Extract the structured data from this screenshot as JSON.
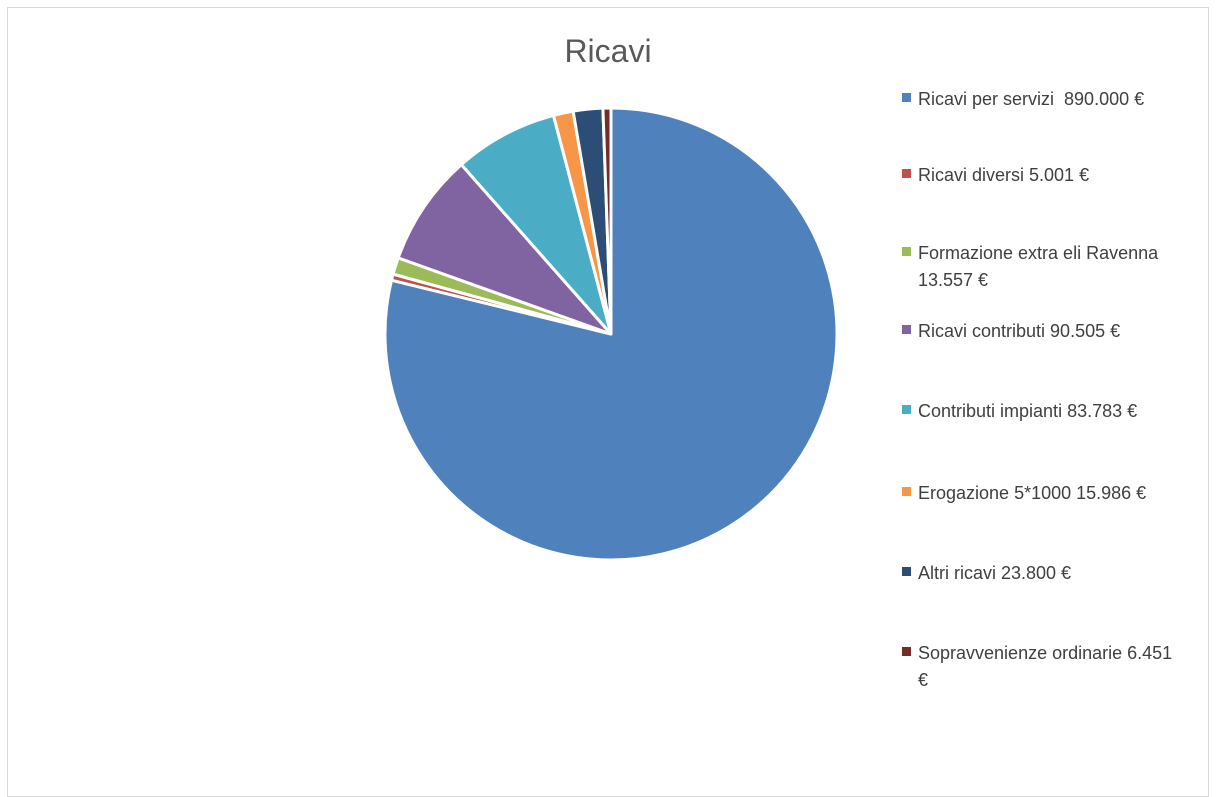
{
  "chart_data": {
    "type": "pie",
    "title": "Ricavi",
    "legend_position": "right",
    "slices": [
      {
        "label": "Ricavi per servizi  890.000 €",
        "value": 890000,
        "color": "#4f81bd"
      },
      {
        "label": "Ricavi diversi 5.001 €",
        "value": 5001,
        "color": "#c0504d"
      },
      {
        "label": "Formazione extra eli Ravenna 13.557 €",
        "value": 13557,
        "color": "#9bbb59"
      },
      {
        "label": "Ricavi contributi 90.505 €",
        "value": 90505,
        "color": "#8064a2"
      },
      {
        "label": "Contributi impianti 83.783 €",
        "value": 83783,
        "color": "#4bacc6"
      },
      {
        "label": "Erogazione 5*1000 15.986 €",
        "value": 15986,
        "color": "#f79646"
      },
      {
        "label": "Altri ricavi 23.800 €",
        "value": 23800,
        "color": "#2c4d75"
      },
      {
        "label": "Sopravvenienze ordinarie 6.451 €",
        "value": 6451,
        "color": "#772c2a"
      }
    ]
  }
}
